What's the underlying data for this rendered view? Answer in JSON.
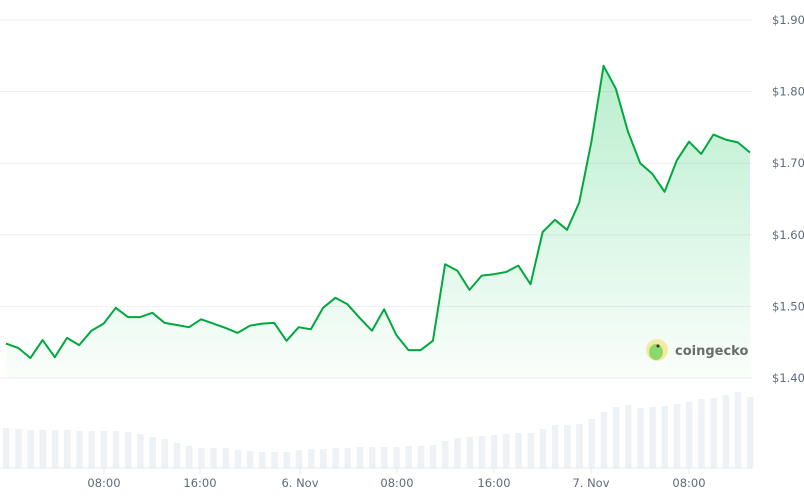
{
  "chart_data": {
    "type": "area",
    "y_axis_position": "right",
    "ylim": [
      1.4,
      1.9
    ],
    "y_ticks": [
      "$1.90",
      "$1.80",
      "$1.70",
      "$1.60",
      "$1.50",
      "$1.40"
    ],
    "y_tick_values": [
      1.9,
      1.8,
      1.7,
      1.6,
      1.5,
      1.4
    ],
    "x_ticks": [
      "08:00",
      "16:00",
      "6. Nov",
      "08:00",
      "16:00",
      "7. Nov",
      "08:00"
    ],
    "grid": true,
    "line_color": "#00a83e",
    "fill_color": "#16c75a",
    "price": [
      1.448,
      1.442,
      1.428,
      1.453,
      1.429,
      1.456,
      1.446,
      1.466,
      1.476,
      1.498,
      1.485,
      1.485,
      1.491,
      1.477,
      1.474,
      1.471,
      1.482,
      1.476,
      1.47,
      1.463,
      1.473,
      1.476,
      1.477,
      1.452,
      1.471,
      1.468,
      1.498,
      1.512,
      1.503,
      1.484,
      1.466,
      1.496,
      1.46,
      1.439,
      1.439,
      1.452,
      1.559,
      1.55,
      1.523,
      1.543,
      1.545,
      1.548,
      1.557,
      1.531,
      1.604,
      1.621,
      1.607,
      1.645,
      1.73,
      1.836,
      1.804,
      1.744,
      1.7,
      1.685,
      1.66,
      1.704,
      1.73,
      1.713,
      1.74,
      1.733,
      1.729,
      1.715
    ],
    "volume_relative": [
      40,
      39,
      38,
      38,
      38,
      38,
      37,
      37,
      37,
      37,
      36,
      34,
      31,
      29,
      25,
      22,
      20,
      20,
      20,
      18,
      17,
      16,
      16,
      16,
      18,
      19,
      19,
      20,
      20,
      21,
      21,
      21,
      21,
      22,
      22,
      23,
      27,
      30,
      31,
      32,
      33,
      34,
      35,
      35,
      39,
      43,
      43,
      44,
      49,
      56,
      61,
      63,
      60,
      61,
      62,
      64,
      66,
      69,
      70,
      73,
      76,
      71
    ],
    "volume_color": "#eef1f5"
  },
  "watermark": {
    "text": "coingecko"
  }
}
